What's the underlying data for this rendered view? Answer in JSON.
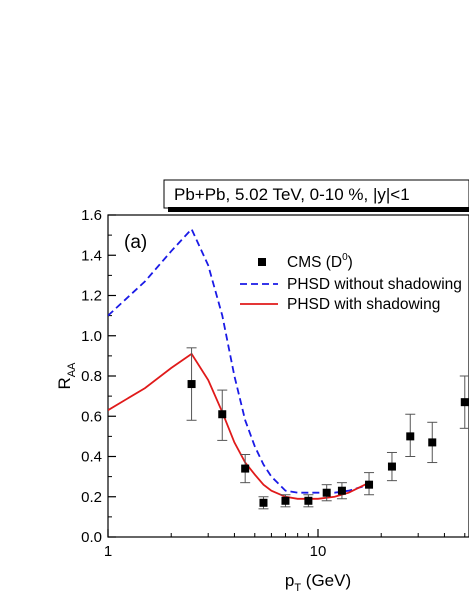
{
  "chart_data": {
    "type": "line",
    "title": "Pb+Pb, 5.02 TeV, 0-10 %, |y|<1",
    "panel_label": "(a)",
    "xlabel": {
      "base": "p",
      "sub": "T",
      "rest": " (GeV)"
    },
    "ylabel": {
      "base": "R",
      "sub": "AA"
    },
    "x_scale": "log",
    "xlim": [
      1,
      60
    ],
    "ylim": [
      0.0,
      1.6
    ],
    "x_ticks": [
      {
        "value": 1,
        "label": "1"
      },
      {
        "value": 10,
        "label": "10"
      }
    ],
    "y_ticks": [
      {
        "value": 0.0,
        "label": "0.0"
      },
      {
        "value": 0.2,
        "label": "0.2"
      },
      {
        "value": 0.4,
        "label": "0.4"
      },
      {
        "value": 0.6,
        "label": "0.6"
      },
      {
        "value": 0.8,
        "label": "0.8"
      },
      {
        "value": 1.0,
        "label": "1.0"
      },
      {
        "value": 1.2,
        "label": "1.2"
      },
      {
        "value": 1.4,
        "label": "1.4"
      },
      {
        "value": 1.6,
        "label": "1.6"
      }
    ],
    "legend_position": "top-right",
    "series": [
      {
        "name": "CMS (D0)",
        "legend_base": "CMS (D",
        "legend_sup": "0",
        "legend_tail": ")",
        "kind": "points",
        "color": "#000000",
        "points": [
          {
            "x": 2.5,
            "y": 0.76,
            "lo": 0.58,
            "hi": 0.94
          },
          {
            "x": 3.5,
            "y": 0.61,
            "lo": 0.48,
            "hi": 0.73
          },
          {
            "x": 4.5,
            "y": 0.34,
            "lo": 0.27,
            "hi": 0.41
          },
          {
            "x": 5.5,
            "y": 0.17,
            "lo": 0.14,
            "hi": 0.2
          },
          {
            "x": 7.0,
            "y": 0.18,
            "lo": 0.15,
            "hi": 0.21
          },
          {
            "x": 9.0,
            "y": 0.18,
            "lo": 0.15,
            "hi": 0.21
          },
          {
            "x": 11.0,
            "y": 0.22,
            "lo": 0.18,
            "hi": 0.26
          },
          {
            "x": 13.0,
            "y": 0.23,
            "lo": 0.19,
            "hi": 0.27
          },
          {
            "x": 17.5,
            "y": 0.26,
            "lo": 0.21,
            "hi": 0.32
          },
          {
            "x": 22.5,
            "y": 0.35,
            "lo": 0.28,
            "hi": 0.42
          },
          {
            "x": 27.5,
            "y": 0.5,
            "lo": 0.4,
            "hi": 0.61
          },
          {
            "x": 35.0,
            "y": 0.47,
            "lo": 0.37,
            "hi": 0.57
          },
          {
            "x": 50.0,
            "y": 0.67,
            "lo": 0.54,
            "hi": 0.8
          }
        ]
      },
      {
        "name": "PHSD without shadowing",
        "kind": "line",
        "dash": "dashed",
        "color": "#1a1ae6",
        "x": [
          1.0,
          1.5,
          2.0,
          2.5,
          3.0,
          3.5,
          4.0,
          4.5,
          5.0,
          5.5,
          6.0,
          7.0,
          8.0,
          9.0,
          10.0,
          12.0,
          14.0,
          17.5
        ],
        "y": [
          1.1,
          1.27,
          1.42,
          1.53,
          1.35,
          1.1,
          0.8,
          0.58,
          0.45,
          0.36,
          0.3,
          0.23,
          0.22,
          0.22,
          0.22,
          0.22,
          0.23,
          0.26
        ]
      },
      {
        "name": "PHSD with shadowing",
        "kind": "line",
        "dash": "solid",
        "color": "#e01a1a",
        "x": [
          1.0,
          1.5,
          2.0,
          2.5,
          3.0,
          3.5,
          4.0,
          4.5,
          5.0,
          5.5,
          6.0,
          7.0,
          8.0,
          9.0,
          10.0,
          12.0,
          14.0,
          17.5
        ],
        "y": [
          0.63,
          0.74,
          0.84,
          0.91,
          0.78,
          0.62,
          0.47,
          0.37,
          0.31,
          0.26,
          0.23,
          0.2,
          0.19,
          0.19,
          0.19,
          0.2,
          0.22,
          0.27
        ]
      }
    ]
  }
}
